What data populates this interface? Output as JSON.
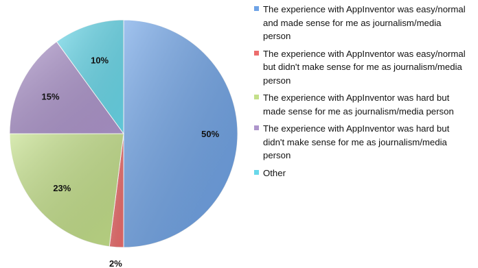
{
  "chart_data": {
    "type": "pie",
    "categories": [
      "The experience with AppInventor was easy/normal and made sense for me as journalism/media person",
      "The experience with AppInventor was easy/normal but didn't make sense for me as journalism/media person",
      "The experience with AppInventor was hard but made sense for me as journalism/media person",
      "The experience with AppInventor was hard but didn't make sense for me as journalism/media person",
      "Other"
    ],
    "values": [
      50,
      2,
      23,
      15,
      10
    ],
    "labels": [
      "50%",
      "2%",
      "23%",
      "15%",
      "10%"
    ],
    "colors": [
      "#6fa3e6",
      "#ec6d6d",
      "#c4e08a",
      "#ae96cc",
      "#69d8ea"
    ],
    "start_angle_deg": 0,
    "direction": "clockwise",
    "legend_position": "right"
  }
}
